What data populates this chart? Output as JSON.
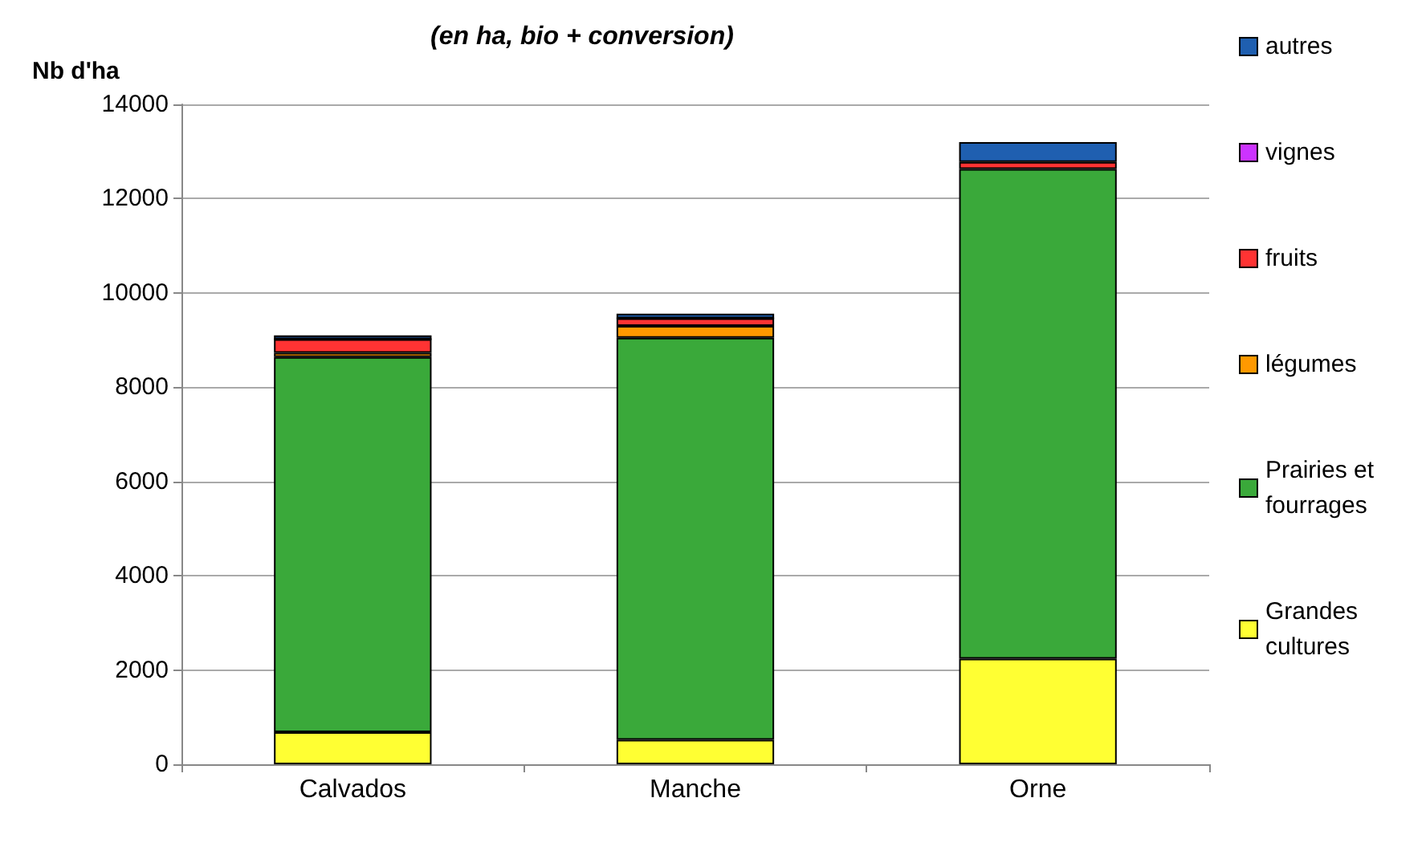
{
  "chart_data": {
    "type": "bar",
    "subtitle": "(en ha, bio + conversion)",
    "ylabel": "Nb d'ha",
    "categories": [
      "Calvados",
      "Manche",
      "Orne"
    ],
    "stacked": true,
    "series": [
      {
        "name": "Grandes cultures",
        "color": "#ffff33",
        "values": [
          680,
          520,
          2240
        ]
      },
      {
        "name": "Prairies et fourrages",
        "color": "#3aa93a",
        "values": [
          7960,
          8530,
          10390
        ]
      },
      {
        "name": "légumes",
        "color": "#ff9900",
        "values": [
          90,
          250,
          null
        ]
      },
      {
        "name": "fruits",
        "color": "#ff3333",
        "values": [
          290,
          160,
          150
        ]
      },
      {
        "name": "vignes",
        "color": "#cc33ff",
        "values": [
          0,
          0,
          null
        ]
      },
      {
        "name": "autres",
        "color": "#1f5fb0",
        "values": [
          80,
          100,
          420
        ]
      }
    ],
    "ylim": [
      0,
      14000
    ],
    "yticks": [
      0,
      2000,
      4000,
      6000,
      8000,
      10000,
      12000,
      14000
    ],
    "grid": "y",
    "legend": "right"
  }
}
